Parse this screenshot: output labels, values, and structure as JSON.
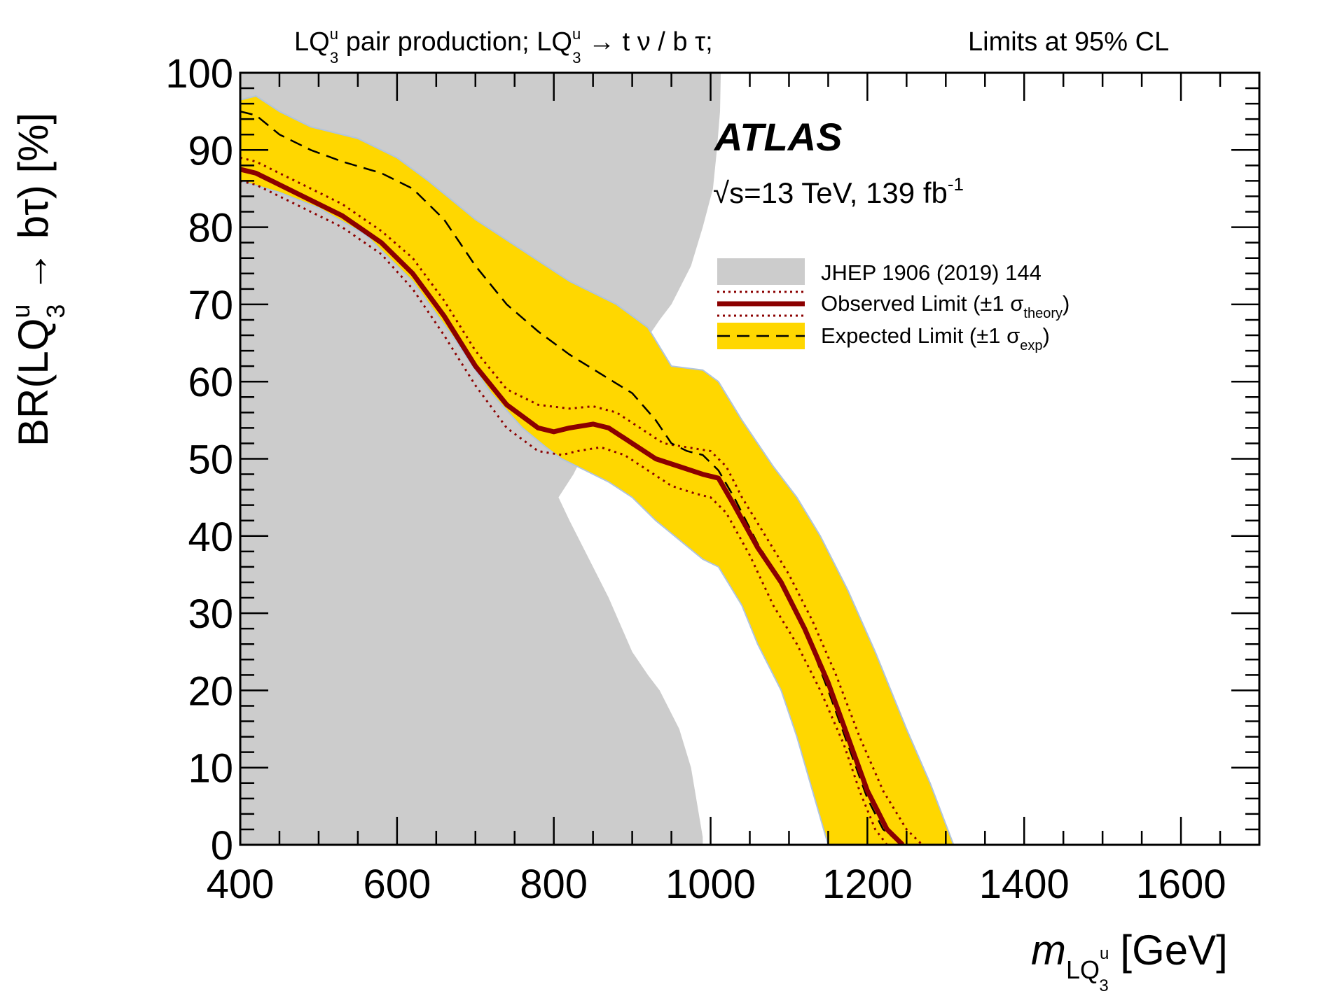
{
  "header": {
    "process_parts": {
      "lq_a": "LQ",
      "sup_a": "u",
      "sub_a": "3",
      "mid": " pair production; ",
      "lq_b": "LQ",
      "sup_b": "u",
      "sub_b": "3",
      "decay": " → t  ν / b  τ;"
    },
    "cl_text": "Limits at 95% CL"
  },
  "atlas_label": "ATLAS",
  "energy_label": {
    "sqrt": "√",
    "s_part": "s=13 TeV, 139 fb",
    "exp": "-1"
  },
  "chart_data": {
    "type": "line",
    "xlabel": "m_LQ3u [GeV]",
    "xlabel_parts": {
      "m": "m",
      "sub": "LQ",
      "subsub": "3",
      "subsup": "u",
      "unit": " [GeV]"
    },
    "ylabel": "BR(LQ3u → bτ) [%]",
    "ylabel_parts": {
      "pre": "BR(LQ",
      "sup": "u",
      "sub": "3",
      "post": " → bτ) [%]"
    },
    "xlim": [
      400,
      1700
    ],
    "ylim": [
      0,
      100
    ],
    "x_ticks": [
      400,
      600,
      800,
      1000,
      1200,
      1400,
      1600
    ],
    "y_ticks": [
      0,
      10,
      20,
      30,
      40,
      50,
      60,
      70,
      80,
      90,
      100
    ],
    "grid": false,
    "legend": {
      "placement": "top-right",
      "entries": [
        {
          "key": "jhep",
          "label": "JHEP 1906 (2019) 144"
        },
        {
          "key": "observed",
          "label": "Observed Limit (±1 σ",
          "sub": "theory",
          "close": ")"
        },
        {
          "key": "expected",
          "label": "Expected Limit (±1 σ",
          "sub": "exp",
          "close": ")"
        }
      ]
    },
    "colors": {
      "excluded_region": "#cccccc",
      "expected_band": "#ffd700",
      "band_edge": "#b0c4de",
      "observed": "#8b0000",
      "expected_line": "#000000"
    },
    "series": [
      {
        "name": "JHEP 1906 (2019) 144",
        "role": "excluded_region",
        "x": [
          1013,
          1012,
          1008,
          1003,
          990,
          975,
          950,
          935,
          915,
          900,
          880,
          862,
          845,
          825,
          806,
          820,
          840,
          870,
          900,
          920,
          935,
          960,
          975,
          990
        ],
        "y": [
          100,
          95,
          90,
          85,
          80,
          75,
          70,
          68,
          65,
          62,
          58,
          55,
          52,
          48,
          45,
          42,
          38,
          32,
          25,
          22,
          20,
          15,
          10,
          1
        ]
      },
      {
        "name": "Expected +1σ",
        "role": "band_upper",
        "x": [
          400,
          420,
          450,
          490,
          550,
          600,
          640,
          700,
          760,
          820,
          880,
          920,
          950,
          990,
          1010,
          1040,
          1080,
          1110,
          1140,
          1175,
          1210,
          1250,
          1280,
          1310
        ],
        "y": [
          96.5,
          97,
          95,
          93,
          91.5,
          89,
          86,
          81,
          77,
          73,
          70,
          67,
          62,
          61.5,
          60,
          55,
          49,
          45,
          40,
          33,
          25,
          15,
          8,
          0
        ]
      },
      {
        "name": "Expected −1σ",
        "role": "band_lower",
        "x": [
          1150,
          1130,
          1110,
          1090,
          1060,
          1040,
          1010,
          990,
          960,
          930,
          900,
          870,
          840,
          810,
          790,
          760,
          720,
          670,
          620,
          560,
          500,
          450,
          400
        ],
        "y": [
          0,
          7,
          14,
          20,
          26,
          31,
          36,
          37,
          39.5,
          42,
          45,
          47,
          48.5,
          50,
          51.5,
          54,
          58.5,
          66,
          73,
          79,
          82.5,
          84.5,
          86
        ]
      },
      {
        "name": "Expected Limit",
        "role": "expected",
        "x": [
          400,
          420,
          450,
          490,
          530,
          580,
          620,
          660,
          700,
          740,
          780,
          820,
          860,
          900,
          930,
          950,
          970,
          990,
          1010,
          1030,
          1060,
          1090,
          1120,
          1150,
          1175,
          1200,
          1220,
          1245
        ],
        "y": [
          95,
          94.5,
          92,
          90,
          88.5,
          87,
          85,
          81,
          75,
          70,
          66.5,
          63.5,
          61,
          58.5,
          55,
          52,
          51,
          50.5,
          48.5,
          45,
          39,
          34,
          28,
          20,
          13,
          6,
          2,
          0
        ]
      },
      {
        "name": "Observed Limit",
        "role": "observed",
        "x": [
          400,
          420,
          440,
          480,
          530,
          580,
          620,
          660,
          700,
          740,
          780,
          800,
          820,
          850,
          870,
          900,
          930,
          960,
          990,
          1010,
          1030,
          1060,
          1090,
          1120,
          1150,
          1175,
          1200,
          1225,
          1245
        ],
        "y": [
          87.5,
          87,
          86,
          84,
          81.5,
          78,
          74,
          68.5,
          62,
          57,
          54,
          53.5,
          54,
          54.5,
          54,
          52,
          50,
          49,
          48,
          47.5,
          44,
          38.5,
          34,
          28,
          21,
          14,
          7,
          2,
          0
        ]
      },
      {
        "name": "Observed +1σ theory",
        "role": "observed_upper",
        "x": [
          400,
          420,
          440,
          480,
          530,
          580,
          620,
          660,
          700,
          740,
          780,
          820,
          850,
          880,
          910,
          940,
          970,
          1000,
          1020,
          1040,
          1070,
          1100,
          1130,
          1160,
          1190,
          1220,
          1250,
          1270
        ],
        "y": [
          89,
          88.5,
          87.5,
          85.5,
          83,
          79.5,
          76,
          70.5,
          64,
          59,
          57,
          56.5,
          56.8,
          56,
          54,
          52,
          51.5,
          51,
          49,
          45,
          40,
          35,
          29,
          22,
          14,
          7,
          2,
          0
        ]
      },
      {
        "name": "Observed −1σ theory",
        "role": "observed_lower",
        "x": [
          400,
          420,
          440,
          480,
          530,
          580,
          620,
          660,
          700,
          740,
          780,
          810,
          830,
          860,
          890,
          920,
          950,
          980,
          1000,
          1020,
          1050,
          1080,
          1110,
          1140,
          1170,
          1190,
          1210,
          1225
        ],
        "y": [
          86,
          85.5,
          84.5,
          82.5,
          80,
          76.5,
          72,
          66,
          59.5,
          54,
          51,
          50.5,
          51,
          51.5,
          50.5,
          48.5,
          46.5,
          45.5,
          45,
          43,
          37.5,
          31,
          26,
          20,
          13,
          7,
          2,
          0
        ]
      }
    ]
  }
}
